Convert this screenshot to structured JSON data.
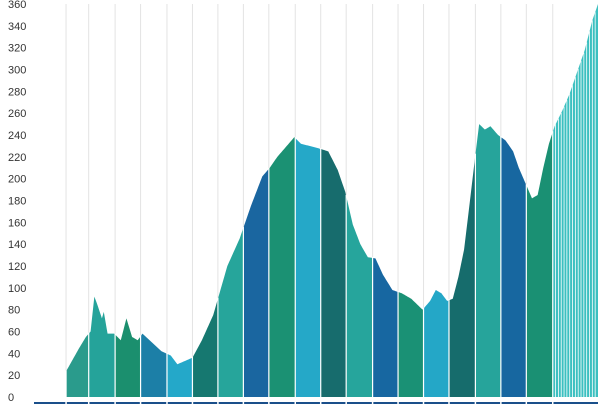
{
  "chart_data": {
    "type": "area",
    "title": "",
    "xlabel": "",
    "ylabel": "",
    "ylim": [
      0,
      360
    ],
    "y_ticks": [
      0,
      20,
      40,
      60,
      80,
      100,
      120,
      140,
      160,
      180,
      200,
      220,
      240,
      260,
      280,
      300,
      320,
      340,
      360
    ],
    "grid": {
      "horizontal": false,
      "vertical": true
    },
    "x": [
      0,
      1,
      2,
      3,
      4,
      5,
      6,
      7,
      8,
      9,
      10,
      11,
      12,
      13,
      14,
      15,
      16,
      17,
      18,
      19,
      20,
      21,
      22,
      23,
      24,
      25,
      26,
      27,
      28,
      29,
      30,
      31,
      32,
      33,
      34,
      35,
      36,
      37,
      38,
      39,
      40,
      41,
      42,
      43,
      44,
      45,
      46,
      47,
      48,
      49,
      50,
      51,
      52,
      53,
      54,
      55,
      56,
      57,
      58,
      59,
      60,
      61,
      62,
      63,
      64,
      65,
      66,
      67,
      68,
      69,
      70,
      71,
      72,
      73,
      74,
      75,
      76,
      77,
      78,
      79,
      80,
      81,
      82,
      83,
      84,
      85,
      86,
      87,
      88,
      89,
      90,
      91,
      92,
      93,
      94,
      95,
      96,
      97,
      98,
      99,
      100,
      101,
      102,
      103,
      104,
      105,
      106,
      107,
      108,
      109,
      110,
      111,
      112,
      113,
      114,
      115,
      116,
      117,
      118,
      119,
      120,
      121,
      122,
      123,
      124,
      125,
      126,
      127,
      128,
      129,
      130,
      131,
      132,
      133,
      134,
      135,
      136,
      137,
      138,
      139,
      140,
      141,
      142,
      143,
      144,
      145,
      146,
      147,
      148,
      149,
      150,
      151,
      152,
      153,
      154,
      155,
      156,
      157,
      158,
      159,
      160,
      161,
      162,
      163,
      164,
      165,
      166,
      167,
      168,
      169,
      170,
      171,
      172,
      173,
      174,
      175,
      176,
      177,
      178,
      179,
      180,
      181,
      182,
      183,
      184,
      185,
      186,
      187,
      188,
      189,
      190,
      191,
      192,
      193,
      194,
      195,
      196,
      197,
      198,
      199,
      200,
      201,
      202,
      203,
      204,
      205,
      206,
      207,
      208,
      209,
      210,
      211,
      212,
      213,
      214,
      215,
      216,
      217,
      218,
      219,
      220,
      221,
      222,
      223,
      224,
      225,
      226,
      227,
      228,
      229,
      230,
      231,
      232,
      233,
      234,
      235,
      236,
      237,
      238,
      239,
      240,
      241,
      242,
      243,
      244,
      245,
      246,
      247,
      248,
      249,
      250,
      251,
      252,
      253,
      254,
      255,
      256,
      257,
      258,
      259,
      260,
      261,
      262,
      263,
      264,
      265,
      266,
      267,
      268,
      269,
      270,
      271,
      272,
      273,
      274,
      275,
      276,
      277,
      278,
      279,
      280,
      281,
      282,
      283,
      284,
      285,
      286,
      287,
      288,
      289,
      290,
      291,
      292,
      293,
      294,
      295,
      296,
      297,
      298,
      299,
      300,
      301,
      302,
      303,
      304,
      305,
      306,
      307,
      308,
      309,
      310,
      311,
      312,
      313,
      314,
      315,
      316,
      317,
      318,
      319,
      320,
      321,
      322,
      323,
      324,
      325,
      326,
      327,
      328,
      329,
      330,
      331,
      332,
      333,
      334,
      335,
      336,
      337,
      338,
      339,
      340,
      341,
      342,
      343,
      344,
      345,
      346,
      347,
      348,
      349,
      350,
      351,
      352,
      353,
      354,
      355,
      356,
      357,
      358,
      359,
      360,
      361,
      362,
      363,
      364,
      365,
      366,
      367,
      368,
      369,
      370,
      371,
      372,
      373,
      374,
      375,
      376,
      377,
      378,
      379,
      380,
      381,
      382,
      383,
      384,
      385,
      386,
      387,
      388,
      389,
      390,
      391,
      392,
      393,
      394,
      395,
      396,
      397,
      398,
      399,
      400,
      401,
      402,
      403,
      404,
      405,
      406,
      407,
      408,
      409,
      410,
      411,
      412,
      413,
      414,
      415,
      416,
      417,
      418,
      419,
      420,
      421,
      422,
      423,
      424,
      425,
      426,
      427,
      428,
      429,
      430,
      431,
      432,
      433,
      434,
      435,
      436,
      437,
      438,
      439,
      440,
      441,
      442,
      443,
      444,
      445,
      446,
      447,
      448,
      449,
      450,
      451,
      452,
      453,
      454,
      455,
      456,
      457,
      458,
      459,
      460,
      461,
      462,
      463,
      464,
      465,
      466,
      467,
      468,
      469,
      470,
      471,
      472,
      473,
      474,
      475,
      476,
      477,
      478,
      479,
      480,
      481,
      482,
      483,
      484,
      485,
      486,
      487,
      488,
      489,
      490,
      491,
      492,
      493,
      494,
      495,
      496,
      497,
      498,
      499,
      500,
      501,
      502,
      503,
      504,
      505,
      506,
      507,
      508,
      509,
      510,
      511,
      512,
      513,
      514,
      515,
      516,
      517,
      518,
      519,
      520,
      521,
      522,
      523,
      524,
      525,
      526,
      527,
      528,
      529,
      530,
      531,
      532,
      533,
      534,
      535,
      536,
      537,
      538,
      539,
      540,
      541,
      542,
      543,
      544,
      545,
      546,
      547,
      548,
      549,
      550,
      551,
      552,
      553,
      554,
      555,
      556,
      557,
      558,
      559,
      560,
      561,
      562,
      563,
      564,
      565,
      566,
      567,
      568,
      569,
      570,
      571,
      572,
      573,
      574,
      575,
      576,
      577,
      578,
      579,
      580,
      581,
      582,
      583,
      584,
      585,
      586,
      587,
      588,
      589,
      590,
      591,
      592,
      593,
      594,
      595,
      596,
      597,
      598
    ],
    "curve_keypoints": [
      [
        0,
        0
      ],
      [
        20,
        2
      ],
      [
        48,
        45
      ],
      [
        55,
        55
      ],
      [
        60,
        60
      ],
      [
        64,
        92
      ],
      [
        67,
        85
      ],
      [
        72,
        72
      ],
      [
        74,
        78
      ],
      [
        78,
        58
      ],
      [
        85,
        58
      ],
      [
        92,
        52
      ],
      [
        98,
        72
      ],
      [
        104,
        55
      ],
      [
        110,
        52
      ],
      [
        115,
        58
      ],
      [
        125,
        50
      ],
      [
        135,
        42
      ],
      [
        145,
        38
      ],
      [
        152,
        30
      ],
      [
        160,
        33
      ],
      [
        168,
        36
      ],
      [
        178,
        52
      ],
      [
        190,
        75
      ],
      [
        205,
        120
      ],
      [
        218,
        145
      ],
      [
        230,
        175
      ],
      [
        242,
        202
      ],
      [
        250,
        210
      ],
      [
        258,
        220
      ],
      [
        268,
        230
      ],
      [
        276,
        238
      ],
      [
        283,
        232
      ],
      [
        292,
        230
      ],
      [
        301,
        228
      ],
      [
        312,
        225
      ],
      [
        322,
        208
      ],
      [
        330,
        188
      ],
      [
        338,
        158
      ],
      [
        346,
        140
      ],
      [
        354,
        128
      ],
      [
        362,
        127
      ],
      [
        370,
        112
      ],
      [
        380,
        98
      ],
      [
        390,
        95
      ],
      [
        400,
        90
      ],
      [
        412,
        80
      ],
      [
        420,
        88
      ],
      [
        426,
        98
      ],
      [
        432,
        95
      ],
      [
        438,
        88
      ],
      [
        444,
        90
      ],
      [
        450,
        110
      ],
      [
        456,
        135
      ],
      [
        462,
        178
      ],
      [
        468,
        222
      ],
      [
        472,
        250
      ],
      [
        478,
        245
      ],
      [
        484,
        248
      ],
      [
        492,
        240
      ],
      [
        500,
        235
      ],
      [
        508,
        225
      ],
      [
        514,
        210
      ],
      [
        520,
        198
      ],
      [
        528,
        182
      ],
      [
        534,
        185
      ],
      [
        540,
        210
      ],
      [
        546,
        232
      ],
      [
        552,
        248
      ],
      [
        560,
        262
      ],
      [
        568,
        278
      ],
      [
        576,
        298
      ],
      [
        584,
        318
      ],
      [
        592,
        345
      ],
      [
        598,
        360
      ]
    ],
    "bands": [
      {
        "x0": 34,
        "x1": 58,
        "color": "#2a9b8c"
      },
      {
        "x0": 58,
        "x1": 86,
        "color": "#25a39a"
      },
      {
        "x0": 86,
        "x1": 113,
        "color": "#1b8f6e"
      },
      {
        "x0": 113,
        "x1": 141,
        "color": "#1c7fa7"
      },
      {
        "x0": 141,
        "x1": 168,
        "color": "#24a8c9"
      },
      {
        "x0": 168,
        "x1": 195,
        "color": "#167870"
      },
      {
        "x0": 195,
        "x1": 222,
        "color": "#26a59b"
      },
      {
        "x0": 222,
        "x1": 249,
        "color": "#1a66a0"
      },
      {
        "x0": 249,
        "x1": 277,
        "color": "#1b9173"
      },
      {
        "x0": 277,
        "x1": 304,
        "color": "#25a8c8"
      },
      {
        "x0": 304,
        "x1": 331,
        "color": "#176c6d"
      },
      {
        "x0": 331,
        "x1": 359,
        "color": "#26a59c"
      },
      {
        "x0": 359,
        "x1": 386,
        "color": "#1767a1"
      },
      {
        "x0": 386,
        "x1": 413,
        "color": "#1a9175"
      },
      {
        "x0": 413,
        "x1": 440,
        "color": "#24a7c7"
      },
      {
        "x0": 440,
        "x1": 468,
        "color": "#166c6c"
      },
      {
        "x0": 468,
        "x1": 495,
        "color": "#26a49b"
      },
      {
        "x0": 495,
        "x1": 522,
        "color": "#1767a0"
      },
      {
        "x0": 522,
        "x1": 550,
        "color": "#1a9073"
      },
      {
        "x0": 550,
        "x1": 598,
        "color": "#3cc0c0"
      }
    ],
    "grid_xs": [
      34,
      58,
      86,
      113,
      141,
      168,
      195,
      222,
      249,
      277,
      304,
      331,
      359,
      386,
      413,
      440,
      468,
      495,
      522,
      550
    ]
  }
}
